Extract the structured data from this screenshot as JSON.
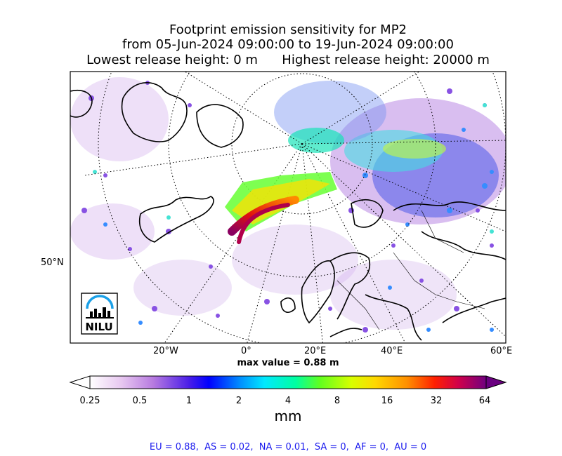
{
  "title": {
    "line1": "Footprint emission sensitivity for MP2",
    "line2": "from 05-Jun-2024 09:00:00 to 19-Jun-2024 09:00:00",
    "line3": "Lowest release height: 0 m      Highest release height: 20000 m"
  },
  "map": {
    "lat_labels": [
      "50°N"
    ],
    "lon_labels": [
      "20°W",
      "0°",
      "20°E",
      "40°E",
      "60°E"
    ],
    "logo_text": "NILU",
    "max_value_text": "max value = 0.88 m"
  },
  "colorbar": {
    "ticks": [
      "0.25",
      "0.5",
      "1",
      "2",
      "4",
      "8",
      "16",
      "32",
      "64"
    ],
    "unit": "mm",
    "colors": [
      "#ffffff",
      "#d8a8e8",
      "#7b2fe0",
      "#0000ff",
      "#00b4ff",
      "#00ffc8",
      "#80ff00",
      "#ffe000",
      "#ff9000",
      "#ff0000",
      "#c0006a",
      "#6a0080"
    ]
  },
  "footer": "EU = 0.88,  AS = 0.02,  NA = 0.01,  SA = 0,  AF = 0,  AU = 0"
}
